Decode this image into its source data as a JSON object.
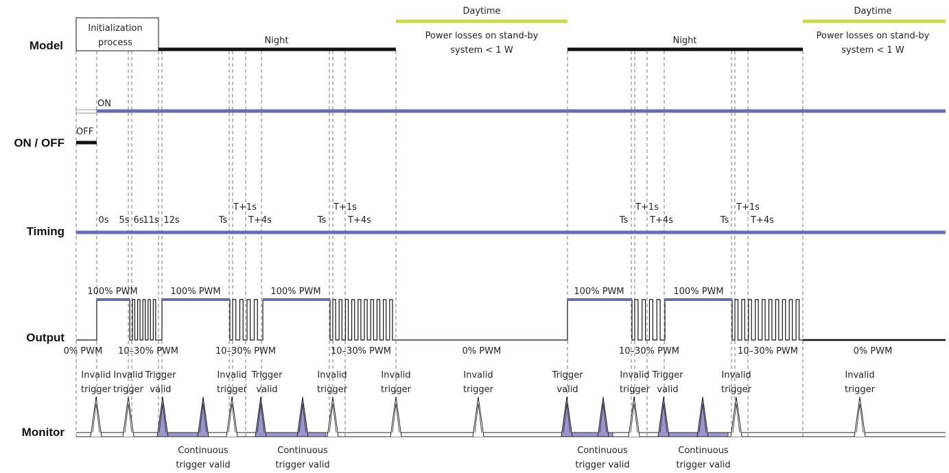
{
  "colors": {
    "accent": "#6b6bb5",
    "pulse_fill": "#9a96cc",
    "daytime": "#c8d94a",
    "line": "#111111",
    "text": "#222222"
  },
  "row_labels": {
    "model": "Model",
    "onoff": "ON / OFF",
    "timing": "Timing",
    "output": "Output",
    "monitor": "Monitor"
  },
  "model": {
    "init_line1": "Initialization",
    "init_line2": "process",
    "night1": "Night",
    "night2": "Night",
    "daytime1": "Daytime",
    "daytime2": "Daytime",
    "standby1_line1": "Power losses on stand-by",
    "standby1_line2": "system < 1 W",
    "standby2_line1": "Power losses on stand-by",
    "standby2_line2": "system < 1 W"
  },
  "onoff": {
    "on": "ON",
    "off": "OFF"
  },
  "timing": {
    "t0": "0s",
    "t5": "5s",
    "t6": "6s",
    "t11": "11s",
    "t12": "12s",
    "ts_a": "Ts",
    "tp1_a": "T+1s",
    "tp4_a": "T+4s",
    "ts_b": "Ts",
    "tp1_b": "T+1s",
    "tp4_b": "T+4s",
    "ts_c": "Ts",
    "tp1_c": "T+1s",
    "tp4_c": "T+4s",
    "ts_d": "Ts",
    "tp1_d": "T+1s",
    "tp4_d": "T+4s"
  },
  "output": {
    "pwm100_1": "100% PWM",
    "pwm100_2": "100% PWM",
    "pwm100_3": "100% PWM",
    "pwm100_4": "100% PWM",
    "pwm100_5": "100% PWM",
    "pwm0_start": "0% PWM",
    "pwm1030_1": "10–30% PWM",
    "pwm1030_2": "10–30% PWM",
    "pwm1030_3": "10–30% PWM",
    "pwm1030_4": "10–30% PWM",
    "pwm1030_5": "10–30% PWM",
    "pwm0_day1": "0% PWM",
    "pwm0_day2": "0% PWM"
  },
  "monitor": {
    "m1_l1": "Invalid",
    "m1_l2": "trigger",
    "m2_l1": "Invalid",
    "m2_l2": "trigger",
    "m3_l1": "Trigger",
    "m3_l2": "valid",
    "m4_l1": "Invalid",
    "m4_l2": "trigger",
    "m5_l1": "Trigger",
    "m5_l2": "valid",
    "m6_l1": "Invalid",
    "m6_l2": "trigger",
    "m7_l1": "Invalid",
    "m7_l2": "trigger",
    "m8_l1": "Invalid",
    "m8_l2": "trigger",
    "m9_l1": "Trigger",
    "m9_l2": "valid",
    "m10_l1": "Invalid",
    "m10_l2": "trigger",
    "m11_l1": "Trigger",
    "m11_l2": "valid",
    "m12_l1": "Invalid",
    "m12_l2": "trigger",
    "m13_l1": "Invalid",
    "m13_l2": "trigger",
    "cont1_l1": "Continuous",
    "cont1_l2": "trigger valid",
    "cont2_l1": "Continuous",
    "cont2_l2": "trigger valid",
    "cont3_l1": "Continuous",
    "cont3_l2": "trigger valid",
    "cont4_l1": "Continuous",
    "cont4_l2": "trigger valid"
  }
}
